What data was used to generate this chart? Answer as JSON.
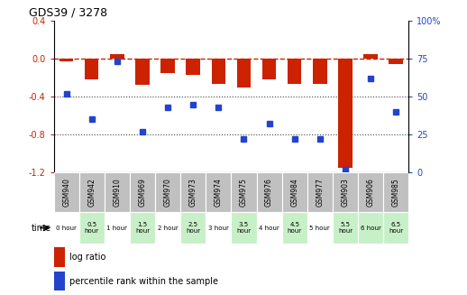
{
  "title": "GDS39 / 3278",
  "samples": [
    "GSM940",
    "GSM942",
    "GSM910",
    "GSM969",
    "GSM970",
    "GSM973",
    "GSM974",
    "GSM975",
    "GSM976",
    "GSM984",
    "GSM977",
    "GSM903",
    "GSM906",
    "GSM985"
  ],
  "time_labels": [
    "0 hour",
    "0.5\nhour",
    "1 hour",
    "1.5\nhour",
    "2 hour",
    "2.5\nhour",
    "3 hour",
    "3.5\nhour",
    "4 hour",
    "4.5\nhour",
    "5 hour",
    "5.5\nhour",
    "6 hour",
    "6.5\nhour"
  ],
  "time_bg": [
    "#ffffff",
    "#c8f0c8",
    "#ffffff",
    "#c8f0c8",
    "#ffffff",
    "#c8f0c8",
    "#ffffff",
    "#c8f0c8",
    "#ffffff",
    "#c8f0c8",
    "#ffffff",
    "#c8f0c8",
    "#c8f0c8",
    "#c8f0c8"
  ],
  "log_ratio": [
    -0.03,
    -0.22,
    0.05,
    -0.28,
    -0.15,
    -0.17,
    -0.27,
    -0.3,
    -0.22,
    -0.27,
    -0.27,
    -1.15,
    0.05,
    -0.06
  ],
  "percentile": [
    52,
    35,
    73,
    27,
    43,
    45,
    43,
    22,
    32,
    22,
    22,
    2,
    62,
    40
  ],
  "ylim_left": [
    -1.2,
    0.4
  ],
  "ylim_right": [
    0,
    100
  ],
  "yticks_left": [
    -1.2,
    -0.8,
    -0.4,
    0.0,
    0.4
  ],
  "yticks_right": [
    0,
    25,
    50,
    75,
    100
  ],
  "bar_color": "#cc2200",
  "dot_color": "#2244cc",
  "hline_color": "#cc2200",
  "dotgrid_color": "#444444",
  "background_color": "#ffffff",
  "sample_bg": "#c0c0c0",
  "ylabel_left_color": "#cc2200",
  "ylabel_right_color": "#2244cc",
  "n_samples": 14
}
